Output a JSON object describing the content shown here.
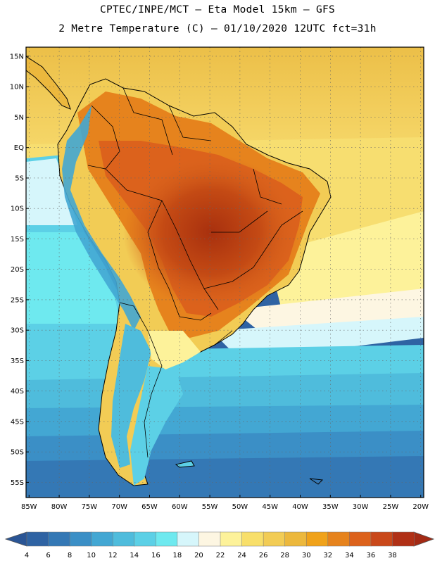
{
  "header": {
    "line1": "CPTEC/INPE/MCT –  Eta Model 15km – GFS",
    "line2": "2 Metre Temperature (C) – 01/10/2020 12UTC fct=31h"
  },
  "map": {
    "lat_labels": [
      "15N",
      "10N",
      "5N",
      "EQ",
      "5S",
      "10S",
      "15S",
      "20S",
      "25S",
      "30S",
      "35S",
      "40S",
      "45S",
      "50S",
      "55S"
    ],
    "lat_values": [
      15,
      10,
      5,
      0,
      -5,
      -10,
      -15,
      -20,
      -25,
      -30,
      -35,
      -40,
      -45,
      -50,
      -55
    ],
    "lon_labels": [
      "85W",
      "80W",
      "75W",
      "70W",
      "65W",
      "60W",
      "55W",
      "50W",
      "45W",
      "40W",
      "35W",
      "30W",
      "25W",
      "20W"
    ],
    "lon_values": [
      -85,
      -80,
      -75,
      -70,
      -65,
      -60,
      -55,
      -50,
      -45,
      -40,
      -35,
      -30,
      -25,
      -20
    ],
    "extent": {
      "lon_min": -85.5,
      "lon_max": -19.5,
      "lat_min": -57.5,
      "lat_max": 16.5
    }
  },
  "colorbar": {
    "labels": [
      "4",
      "6",
      "8",
      "10",
      "12",
      "14",
      "16",
      "18",
      "20",
      "22",
      "24",
      "26",
      "28",
      "30",
      "32",
      "34",
      "36",
      "38"
    ],
    "colors": [
      "#2f63a3",
      "#3478b5",
      "#3b8fc6",
      "#43a7d3",
      "#4fbcdc",
      "#5cd0e6",
      "#6ee9ef",
      "#d6f6fb",
      "#fdf6e2",
      "#fdf29a",
      "#f8df6a",
      "#f2cc55",
      "#ecb83d",
      "#f0a21a",
      "#e6831d",
      "#dc621c",
      "#c9481a",
      "#b03016"
    ],
    "left_color": "#2a5595",
    "right_color": "#a32a14"
  }
}
